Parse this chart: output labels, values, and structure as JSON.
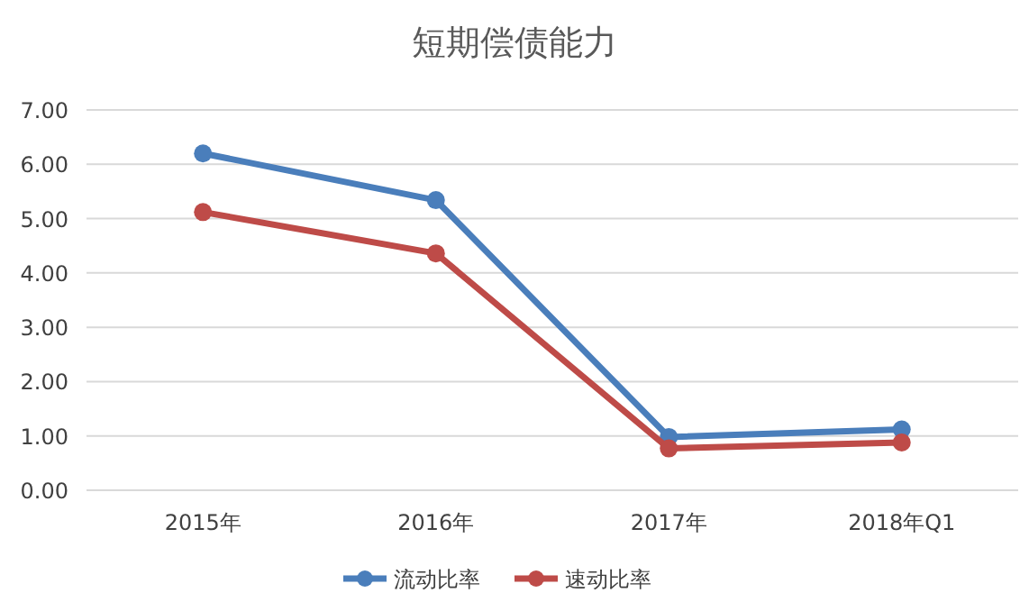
{
  "chart_data": {
    "type": "line",
    "title": "短期偿债能力",
    "categories": [
      "2015年",
      "2016年",
      "2017年",
      "2018年Q1"
    ],
    "series": [
      {
        "name": "流动比率",
        "color": "#4a7ebb",
        "values": [
          6.2,
          5.34,
          0.98,
          1.12
        ]
      },
      {
        "name": "速动比率",
        "color": "#be4b48",
        "values": [
          5.12,
          4.36,
          0.77,
          0.88
        ]
      }
    ],
    "ylim": [
      0,
      7
    ],
    "yticks": [
      {
        "value": 0,
        "label": "0.00"
      },
      {
        "value": 1,
        "label": "1.00"
      },
      {
        "value": 2,
        "label": "2.00"
      },
      {
        "value": 3,
        "label": "3.00"
      },
      {
        "value": 4,
        "label": "4.00"
      },
      {
        "value": 5,
        "label": "5.00"
      },
      {
        "value": 6,
        "label": "6.00"
      },
      {
        "value": 7,
        "label": "7.00"
      }
    ],
    "grid": "y",
    "legend": "bottom",
    "marker": "circle",
    "line_style": "solid"
  }
}
